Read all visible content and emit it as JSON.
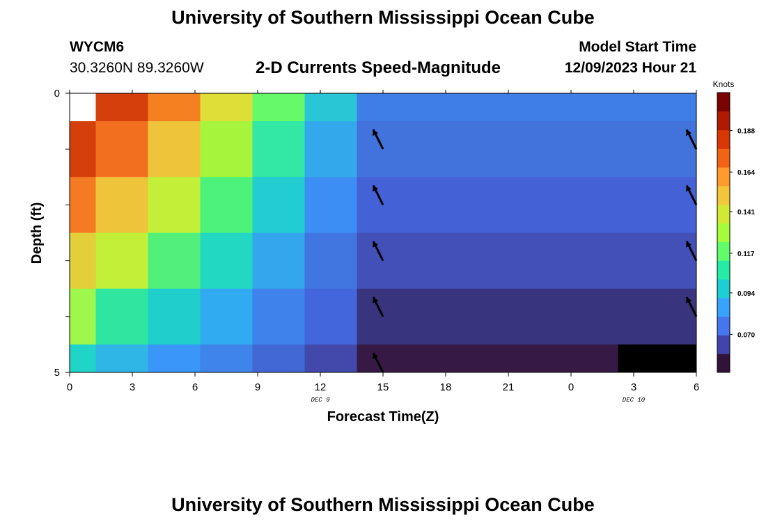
{
  "header": {
    "title": "University of Southern Mississippi Ocean Cube",
    "station_id": "WYCM6",
    "coordinates": "30.3260N  89.3260W",
    "subtitle": "2-D Currents Speed-Magnitude",
    "model_start_label": "Model Start Time",
    "model_start_value": "12/09/2023 Hour 21"
  },
  "footer": {
    "title": "University of Southern Mississippi Ocean Cube"
  },
  "chart_data": {
    "type": "heatmap",
    "title": "2-D Currents Speed-Magnitude",
    "xlabel": "Forecast Time(Z)",
    "ylabel": "Depth (ft)",
    "x_ticks": [
      "0",
      "3",
      "6",
      "9",
      "12",
      "15",
      "18",
      "21",
      "0",
      "3",
      "6"
    ],
    "x_range_hours": [
      0,
      30
    ],
    "date_labels": [
      {
        "text": "DEC 9",
        "hour": 12
      },
      {
        "text": "DEC 10",
        "hour": 27
      }
    ],
    "y_ticks": [
      "0",
      "5"
    ],
    "y_range": [
      0,
      5
    ],
    "colorbar": {
      "label": "Knots",
      "ticks": [
        "0.188",
        "0.164",
        "0.141",
        "0.117",
        "0.094",
        "0.070"
      ],
      "tick_values": [
        0.188,
        0.164,
        0.141,
        0.117,
        0.094,
        0.07
      ],
      "range": [
        0.048,
        0.21
      ],
      "colors": [
        "#30123b",
        "#4145ab",
        "#4675ed",
        "#39a2fc",
        "#1bcfd4",
        "#24eca6",
        "#61fc6c",
        "#a4fc3b",
        "#d1e834",
        "#f3c63a",
        "#fe9b2d",
        "#f36315",
        "#d93806",
        "#b11901",
        "#7a0402"
      ]
    },
    "cells": [
      {
        "x0": 0,
        "x1": 1.25,
        "y0": 0,
        "y1": 0.5,
        "color": "#ffffff"
      },
      {
        "x0": 1.25,
        "x1": 3.75,
        "y0": 0,
        "y1": 0.5,
        "color": "#d43f0c"
      },
      {
        "x0": 3.75,
        "x1": 6.25,
        "y0": 0,
        "y1": 0.5,
        "color": "#f48021"
      },
      {
        "x0": 6.25,
        "x1": 8.75,
        "y0": 0,
        "y1": 0.5,
        "color": "#dede39"
      },
      {
        "x0": 8.75,
        "x1": 11.25,
        "y0": 0,
        "y1": 0.5,
        "color": "#66fa6a"
      },
      {
        "x0": 11.25,
        "x1": 13.75,
        "y0": 0,
        "y1": 0.5,
        "color": "#29c7d6"
      },
      {
        "x0": 13.75,
        "x1": 30,
        "y0": 0,
        "y1": 0.5,
        "color": "#3f7ee6"
      },
      {
        "x0": 0,
        "x1": 1.25,
        "y0": 0.5,
        "y1": 1.5,
        "color": "#d43f0c"
      },
      {
        "x0": 1.25,
        "x1": 3.75,
        "y0": 0.5,
        "y1": 1.5,
        "color": "#f26f20"
      },
      {
        "x0": 3.75,
        "x1": 6.25,
        "y0": 0.5,
        "y1": 1.5,
        "color": "#eec43a"
      },
      {
        "x0": 6.25,
        "x1": 8.75,
        "y0": 0.5,
        "y1": 1.5,
        "color": "#a6f43c"
      },
      {
        "x0": 8.75,
        "x1": 11.25,
        "y0": 0.5,
        "y1": 1.5,
        "color": "#33e7a4"
      },
      {
        "x0": 11.25,
        "x1": 13.75,
        "y0": 0.5,
        "y1": 1.5,
        "color": "#33a9ec"
      },
      {
        "x0": 13.75,
        "x1": 30,
        "y0": 0.5,
        "y1": 1.5,
        "color": "#4272dc"
      },
      {
        "x0": 0,
        "x1": 1.25,
        "y0": 1.5,
        "y1": 2.5,
        "color": "#f47a24"
      },
      {
        "x0": 1.25,
        "x1": 3.75,
        "y0": 1.5,
        "y1": 2.5,
        "color": "#eec43a"
      },
      {
        "x0": 3.75,
        "x1": 6.25,
        "y0": 1.5,
        "y1": 2.5,
        "color": "#c4ef39"
      },
      {
        "x0": 6.25,
        "x1": 8.75,
        "y0": 1.5,
        "y1": 2.5,
        "color": "#4df27a"
      },
      {
        "x0": 8.75,
        "x1": 11.25,
        "y0": 1.5,
        "y1": 2.5,
        "color": "#22cdd2"
      },
      {
        "x0": 11.25,
        "x1": 13.75,
        "y0": 1.5,
        "y1": 2.5,
        "color": "#3d8ef4"
      },
      {
        "x0": 13.75,
        "x1": 30,
        "y0": 1.5,
        "y1": 2.5,
        "color": "#4462d6"
      },
      {
        "x0": 0,
        "x1": 1.25,
        "y0": 2.5,
        "y1": 3.5,
        "color": "#e2cf39"
      },
      {
        "x0": 1.25,
        "x1": 3.75,
        "y0": 2.5,
        "y1": 3.5,
        "color": "#c4ef39"
      },
      {
        "x0": 3.75,
        "x1": 6.25,
        "y0": 2.5,
        "y1": 3.5,
        "color": "#52f07a"
      },
      {
        "x0": 6.25,
        "x1": 8.75,
        "y0": 2.5,
        "y1": 3.5,
        "color": "#22d8c2"
      },
      {
        "x0": 8.75,
        "x1": 11.25,
        "y0": 2.5,
        "y1": 3.5,
        "color": "#34a6ee"
      },
      {
        "x0": 11.25,
        "x1": 13.75,
        "y0": 2.5,
        "y1": 3.5,
        "color": "#4176e0"
      },
      {
        "x0": 13.75,
        "x1": 30,
        "y0": 2.5,
        "y1": 3.5,
        "color": "#4350b8"
      },
      {
        "x0": 0,
        "x1": 1.25,
        "y0": 3.5,
        "y1": 4.5,
        "color": "#9ef74b"
      },
      {
        "x0": 1.25,
        "x1": 3.75,
        "y0": 3.5,
        "y1": 4.5,
        "color": "#2ee6a0"
      },
      {
        "x0": 3.75,
        "x1": 6.25,
        "y0": 3.5,
        "y1": 4.5,
        "color": "#20cfcc"
      },
      {
        "x0": 6.25,
        "x1": 8.75,
        "y0": 3.5,
        "y1": 4.5,
        "color": "#30aaf0"
      },
      {
        "x0": 8.75,
        "x1": 11.25,
        "y0": 3.5,
        "y1": 4.5,
        "color": "#3f82ec"
      },
      {
        "x0": 11.25,
        "x1": 13.75,
        "y0": 3.5,
        "y1": 4.5,
        "color": "#4466dc"
      },
      {
        "x0": 13.75,
        "x1": 30,
        "y0": 3.5,
        "y1": 4.5,
        "color": "#38357e"
      },
      {
        "x0": 0,
        "x1": 1.25,
        "y0": 4.5,
        "y1": 5,
        "color": "#20d5c8"
      },
      {
        "x0": 1.25,
        "x1": 3.75,
        "y0": 4.5,
        "y1": 5,
        "color": "#2fb6e6"
      },
      {
        "x0": 3.75,
        "x1": 6.25,
        "y0": 4.5,
        "y1": 5,
        "color": "#3a96f8"
      },
      {
        "x0": 6.25,
        "x1": 8.75,
        "y0": 4.5,
        "y1": 5,
        "color": "#3f84ea"
      },
      {
        "x0": 8.75,
        "x1": 11.25,
        "y0": 4.5,
        "y1": 5,
        "color": "#4268d6"
      },
      {
        "x0": 11.25,
        "x1": 13.75,
        "y0": 4.5,
        "y1": 5,
        "color": "#4249aa"
      },
      {
        "x0": 13.75,
        "x1": 26.25,
        "y0": 4.5,
        "y1": 5,
        "color": "#361a45"
      },
      {
        "x0": 26.25,
        "x1": 30,
        "y0": 4.5,
        "y1": 5,
        "color": "#000000"
      }
    ],
    "vectors": [
      {
        "hour": 15,
        "depth": 1,
        "direction": "north-northwest"
      },
      {
        "hour": 30,
        "depth": 1,
        "direction": "north-northwest"
      },
      {
        "hour": 15,
        "depth": 2,
        "direction": "north-northwest"
      },
      {
        "hour": 30,
        "depth": 2,
        "direction": "north-northwest"
      },
      {
        "hour": 15,
        "depth": 3,
        "direction": "north-northwest"
      },
      {
        "hour": 30,
        "depth": 3,
        "direction": "north-northwest"
      },
      {
        "hour": 15,
        "depth": 4,
        "direction": "north-northwest"
      },
      {
        "hour": 30,
        "depth": 4,
        "direction": "north-northwest"
      },
      {
        "hour": 15,
        "depth": 5,
        "direction": "north-northwest"
      }
    ]
  }
}
